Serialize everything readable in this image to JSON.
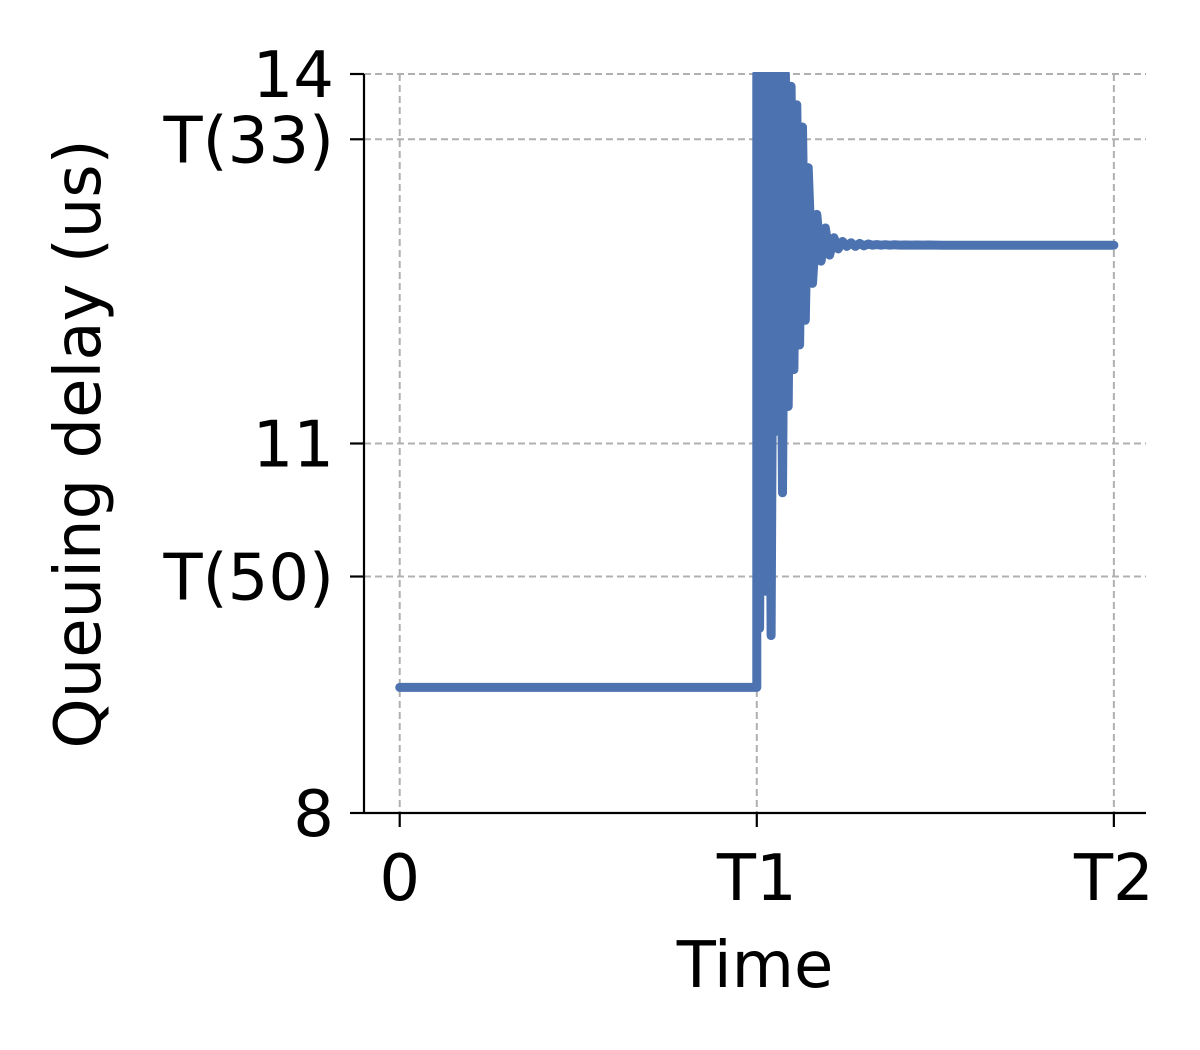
{
  "chart_data": {
    "type": "line",
    "title": "",
    "xlabel": "Time",
    "ylabel": "Queuing delay (us)",
    "xlim": [
      -0.05,
      1.045
    ],
    "ylim": [
      8,
      14
    ],
    "grid": true,
    "line_color": "#4c72b0",
    "grid_color": "#b0b0b0",
    "x_ticks": [
      {
        "value": 0,
        "label": "0"
      },
      {
        "value": 0.5,
        "label": "T1"
      },
      {
        "value": 1.0,
        "label": "T2"
      }
    ],
    "y_ticks": [
      {
        "value": 8,
        "label": "8"
      },
      {
        "value": 9.92,
        "label": "T(50)"
      },
      {
        "value": 11,
        "label": "11"
      },
      {
        "value": 13.47,
        "label": "T(33)"
      },
      {
        "value": 14,
        "label": "14"
      }
    ],
    "series": [
      {
        "name": "",
        "x": [
          0,
          0.5,
          0.5,
          0.504,
          0.508,
          0.512,
          0.516,
          0.52,
          0.524,
          0.528,
          0.532,
          0.536,
          0.54,
          0.544,
          0.548,
          0.552,
          0.556,
          0.56,
          0.564,
          0.568,
          0.572,
          0.578,
          0.584,
          0.59,
          0.596,
          0.602,
          0.608,
          0.614,
          0.62,
          0.626,
          0.632,
          0.638,
          0.644,
          0.65,
          0.656,
          0.662,
          0.668,
          0.674,
          0.68,
          0.686,
          0.692,
          0.7,
          0.708,
          0.716,
          0.724,
          0.732,
          0.74,
          0.76,
          0.78,
          1.0
        ],
        "y": [
          9.02,
          9.02,
          14,
          9.5,
          14,
          9.8,
          14,
          9.44,
          14,
          11.1,
          14,
          10.6,
          14,
          11.3,
          13.9,
          11.6,
          13.75,
          11.8,
          13.57,
          12.0,
          13.24,
          12.3,
          12.86,
          12.48,
          12.75,
          12.53,
          12.67,
          12.58,
          12.64,
          12.6,
          12.63,
          12.6,
          12.625,
          12.605,
          12.62,
          12.61,
          12.615,
          12.61,
          12.614,
          12.61,
          12.613,
          12.611,
          12.612,
          12.611,
          12.612,
          12.611,
          12.612,
          12.61,
          12.61,
          12.61
        ]
      }
    ]
  }
}
